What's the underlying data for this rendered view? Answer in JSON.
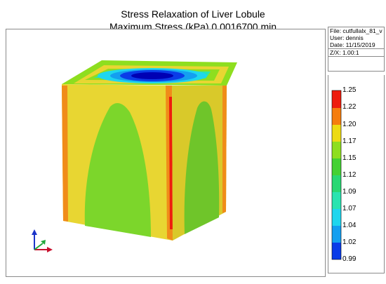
{
  "header": {
    "title_line1": "Stress Relaxation of Liver Lobule",
    "title_line2": "Maximum Stress (kPa) 0.0016700 min"
  },
  "info": {
    "file": "File: cutfullalx_81_v",
    "user": "User:  dennis",
    "date": "Date: 11/15/2019",
    "zx": "Z/X: 1.00:1"
  },
  "legend": {
    "labels": [
      "1.25",
      "1.22",
      "1.20",
      "1.17",
      "1.15",
      "1.12",
      "1.09",
      "1.07",
      "1.04",
      "1.02",
      "0.99"
    ],
    "colors": [
      "#ee1c0d",
      "#f57d0e",
      "#eddb12",
      "#8ede1f",
      "#44d133",
      "#28d873",
      "#29e4b0",
      "#1fd6ee",
      "#149ff0",
      "#0a3ce8",
      "#0000b4"
    ]
  },
  "colors": {
    "face_yellow": "#e8d632",
    "face_green": "#7cd62b",
    "edge_orange": "#f08c19",
    "top_blue": "#0b2fd6",
    "axis_x": "#c8102e",
    "axis_y": "#1fa83a",
    "axis_z": "#1b34c9"
  }
}
